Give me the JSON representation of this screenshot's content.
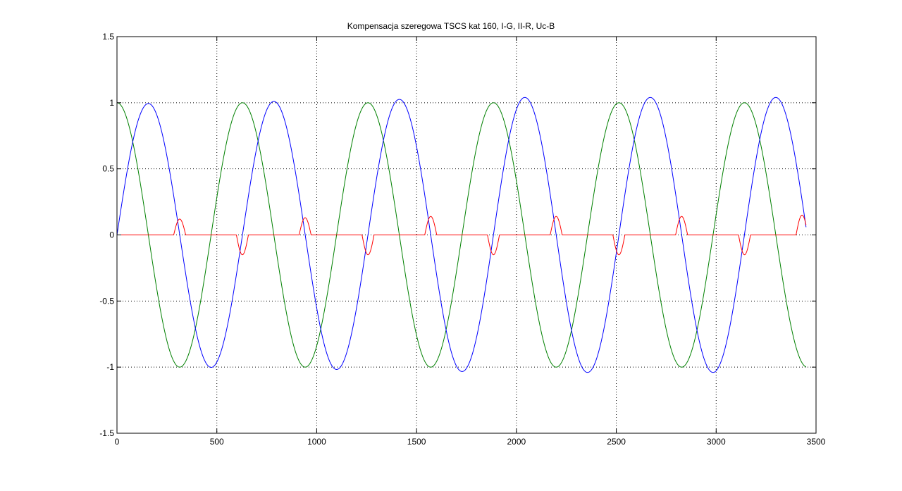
{
  "chart_data": {
    "type": "line",
    "title": "Kompensacja szeregowa TSCS kat 160, I-G, II-R, Uc-B",
    "xlabel": "",
    "ylabel": "",
    "xlim": [
      0,
      3500
    ],
    "ylim": [
      -1.5,
      1.5
    ],
    "xticks": [
      0,
      500,
      1000,
      1500,
      2000,
      2500,
      3000,
      3500
    ],
    "yticks": [
      -1.5,
      -1,
      -0.5,
      0,
      0.5,
      1,
      1.5
    ],
    "xtick_labels": [
      "0",
      "500",
      "1000",
      "1500",
      "2000",
      "2500",
      "3000",
      "3500"
    ],
    "ytick_labels": [
      "-1.5",
      "-1",
      "-0.5",
      "0",
      "0.5",
      "1",
      "1.5"
    ],
    "grid": true,
    "legend": "none",
    "x_range_data": [
      0,
      3450
    ],
    "series": [
      {
        "color": "#008000",
        "kind": "cosine",
        "amplitude": 1.0,
        "period": 628.3,
        "phase_shift": 0,
        "key_points": [
          [
            0,
            1
          ],
          [
            314,
            -1
          ],
          [
            628,
            1
          ],
          [
            942,
            -1
          ],
          [
            1257,
            1
          ],
          [
            1571,
            -1
          ],
          [
            1885,
            1
          ],
          [
            2199,
            -1
          ],
          [
            2513,
            1
          ],
          [
            2827,
            -1
          ],
          [
            3142,
            1
          ],
          [
            3450,
            -1
          ]
        ]
      },
      {
        "color": "#0000ff",
        "kind": "sine_growing",
        "amplitude_start": 0.99,
        "amplitude_end": 1.04,
        "period": 628.3,
        "phase_shift": 0,
        "peaks": [
          [
            157,
            0.99
          ],
          [
            785,
            1.02
          ],
          [
            1414,
            1.03
          ],
          [
            2042,
            1.04
          ],
          [
            2670,
            1.04
          ],
          [
            3299,
            1.04
          ]
        ],
        "troughs": [
          [
            471,
            -1.05
          ],
          [
            1100,
            -1.04
          ],
          [
            1728,
            -1.04
          ],
          [
            2356,
            -1.04
          ],
          [
            2984,
            -1.03
          ]
        ]
      },
      {
        "color": "#ff0000",
        "kind": "pulses",
        "amplitude": 0.14,
        "pulse_half_width": 30,
        "pulses": [
          [
            314,
            0.12
          ],
          [
            628,
            -0.15
          ],
          [
            942,
            0.13
          ],
          [
            1257,
            -0.15
          ],
          [
            1571,
            0.14
          ],
          [
            1885,
            -0.15
          ],
          [
            2199,
            0.14
          ],
          [
            2513,
            -0.15
          ],
          [
            2827,
            0.14
          ],
          [
            3142,
            -0.15
          ],
          [
            3430,
            0.15
          ]
        ]
      }
    ]
  }
}
